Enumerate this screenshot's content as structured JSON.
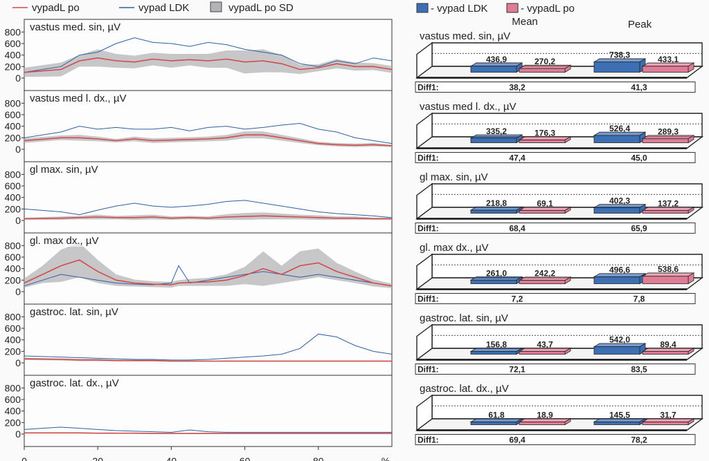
{
  "legend_left": [
    {
      "label": "vypadL po",
      "color": "#d24a4a"
    },
    {
      "label": "vypad LDK",
      "color": "#2f5f9e"
    },
    {
      "label": "vypadL po SD",
      "color": "#b4b4b8"
    }
  ],
  "legend_right": [
    {
      "label": "vypad LDK",
      "color": "#3d6fb5"
    },
    {
      "label": "vypadL po",
      "color": "#e07d96"
    }
  ],
  "bar_headers": {
    "mean": "Mean",
    "peak": "Peak"
  },
  "diff_label": "Diff1:",
  "colors": {
    "ldk": "#2f5f9e",
    "po": "#d24a4a",
    "sd": "#b4b4b8",
    "bar_ldk": "#3d6fb5",
    "bar_po": "#e07d96"
  },
  "chart_data": [
    {
      "type": "line",
      "title": "vastus med. sin, µV",
      "x_ticks": [
        "0",
        "20",
        "40",
        "60",
        "80",
        "%"
      ],
      "y_ticks": [
        "0",
        "200",
        "400",
        "600",
        "800"
      ],
      "ylim": [
        0,
        900
      ],
      "xlim": [
        0,
        100
      ],
      "x": [
        0,
        10,
        15,
        20,
        25,
        30,
        35,
        40,
        45,
        50,
        55,
        60,
        65,
        70,
        75,
        80,
        85,
        90,
        95,
        100
      ],
      "series": [
        {
          "name": "vypad LDK",
          "values": [
            100,
            200,
            400,
            450,
            600,
            700,
            620,
            600,
            550,
            620,
            580,
            500,
            450,
            400,
            250,
            200,
            300,
            250,
            350,
            300
          ]
        },
        {
          "name": "vypadL po",
          "values": [
            100,
            150,
            300,
            350,
            300,
            280,
            330,
            300,
            320,
            300,
            330,
            280,
            300,
            250,
            150,
            180,
            250,
            200,
            200,
            150
          ]
        },
        {
          "name": "vypadL po SD",
          "values": [
            80,
            120,
            100,
            150,
            120,
            110,
            110,
            120,
            100,
            120,
            150,
            200,
            200,
            150,
            80,
            60,
            80,
            70,
            60,
            60
          ]
        }
      ]
    },
    {
      "type": "line",
      "title": "vastus med l. dx., µV",
      "x_ticks": [
        "0",
        "20",
        "40",
        "60",
        "80",
        "%"
      ],
      "y_ticks": [
        "0",
        "200",
        "400",
        "600",
        "800"
      ],
      "ylim": [
        0,
        900
      ],
      "xlim": [
        0,
        100
      ],
      "x": [
        0,
        10,
        15,
        20,
        25,
        30,
        35,
        40,
        45,
        50,
        55,
        60,
        65,
        70,
        75,
        80,
        85,
        90,
        95,
        100
      ],
      "series": [
        {
          "name": "vypad LDK",
          "values": [
            200,
            300,
            400,
            350,
            380,
            350,
            350,
            380,
            320,
            380,
            400,
            350,
            380,
            420,
            450,
            350,
            300,
            200,
            150,
            100
          ]
        },
        {
          "name": "vypadL po",
          "values": [
            150,
            200,
            200,
            180,
            150,
            180,
            150,
            160,
            170,
            180,
            200,
            250,
            250,
            200,
            150,
            100,
            80,
            70,
            80,
            60
          ]
        },
        {
          "name": "vypadL po SD",
          "values": [
            40,
            40,
            50,
            40,
            30,
            40,
            40,
            40,
            40,
            40,
            50,
            60,
            60,
            50,
            40,
            30,
            30,
            30,
            30,
            20
          ]
        }
      ]
    },
    {
      "type": "line",
      "title": "gl max. sin, µV",
      "x_ticks": [
        "0",
        "20",
        "40",
        "60",
        "80",
        "%"
      ],
      "y_ticks": [
        "0",
        "200",
        "400",
        "600",
        "800"
      ],
      "ylim": [
        0,
        900
      ],
      "xlim": [
        0,
        100
      ],
      "x": [
        0,
        10,
        15,
        20,
        25,
        30,
        35,
        40,
        45,
        50,
        55,
        60,
        65,
        70,
        75,
        80,
        85,
        90,
        95,
        100
      ],
      "series": [
        {
          "name": "vypad LDK",
          "values": [
            200,
            150,
            100,
            180,
            250,
            300,
            250,
            230,
            250,
            280,
            330,
            350,
            300,
            250,
            200,
            150,
            120,
            100,
            80,
            50
          ]
        },
        {
          "name": "vypadL po",
          "values": [
            30,
            40,
            50,
            60,
            50,
            50,
            60,
            40,
            50,
            40,
            60,
            70,
            80,
            70,
            60,
            50,
            40,
            40,
            30,
            30
          ]
        },
        {
          "name": "vypadL po SD",
          "values": [
            20,
            30,
            30,
            40,
            30,
            40,
            40,
            30,
            30,
            30,
            50,
            60,
            60,
            50,
            40,
            40,
            30,
            30,
            20,
            20
          ]
        }
      ]
    },
    {
      "type": "line",
      "title": "gl. max dx., µV",
      "x_ticks": [
        "0",
        "20",
        "40",
        "60",
        "80",
        "%"
      ],
      "y_ticks": [
        "0",
        "200",
        "400",
        "600",
        "800"
      ],
      "ylim": [
        0,
        900
      ],
      "xlim": [
        0,
        100
      ],
      "x": [
        0,
        5,
        10,
        15,
        20,
        25,
        30,
        35,
        40,
        42,
        45,
        50,
        55,
        60,
        65,
        70,
        75,
        80,
        85,
        90,
        95,
        100
      ],
      "series": [
        {
          "name": "vypad LDK",
          "values": [
            100,
            200,
            300,
            250,
            200,
            150,
            130,
            120,
            150,
            450,
            150,
            200,
            250,
            300,
            350,
            300,
            250,
            300,
            250,
            200,
            150,
            100
          ]
        },
        {
          "name": "vypadL po",
          "values": [
            150,
            300,
            450,
            550,
            350,
            200,
            150,
            130,
            120,
            150,
            160,
            170,
            200,
            280,
            400,
            300,
            450,
            500,
            350,
            250,
            150,
            100
          ]
        },
        {
          "name": "vypadL po SD",
          "values": [
            80,
            150,
            280,
            300,
            200,
            100,
            60,
            50,
            50,
            50,
            60,
            70,
            100,
            150,
            300,
            150,
            250,
            250,
            150,
            100,
            60,
            40
          ]
        }
      ]
    },
    {
      "type": "line",
      "title": "gastroc. lat. sin, µV",
      "x_ticks": [
        "0",
        "20",
        "40",
        "60",
        "80",
        "%"
      ],
      "y_ticks": [
        "0",
        "200",
        "400",
        "600",
        "800"
      ],
      "ylim": [
        0,
        900
      ],
      "xlim": [
        0,
        100
      ],
      "x": [
        0,
        10,
        15,
        20,
        25,
        30,
        35,
        40,
        45,
        50,
        55,
        60,
        65,
        70,
        75,
        80,
        85,
        90,
        95,
        100
      ],
      "series": [
        {
          "name": "vypad LDK",
          "values": [
            120,
            100,
            90,
            80,
            70,
            60,
            60,
            50,
            50,
            60,
            80,
            100,
            120,
            150,
            250,
            500,
            450,
            300,
            200,
            150
          ]
        },
        {
          "name": "vypadL po",
          "values": [
            70,
            60,
            50,
            50,
            40,
            40,
            40,
            30,
            30,
            30,
            30,
            30,
            30,
            30,
            30,
            30,
            30,
            30,
            30,
            30
          ]
        },
        {
          "name": "vypadL po SD",
          "values": [
            20,
            20,
            20,
            20,
            15,
            15,
            15,
            10,
            10,
            10,
            10,
            10,
            10,
            10,
            10,
            10,
            10,
            10,
            10,
            10
          ]
        }
      ]
    },
    {
      "type": "line",
      "title": "gastroc. lat. dx., µV",
      "x_ticks": [
        "0",
        "20",
        "40",
        "60",
        "80",
        "%"
      ],
      "y_ticks": [
        "0",
        "200",
        "400",
        "600",
        "800"
      ],
      "ylim": [
        0,
        900
      ],
      "xlim": [
        0,
        100
      ],
      "x": [
        0,
        5,
        10,
        15,
        20,
        25,
        30,
        35,
        40,
        45,
        50,
        55,
        60,
        65,
        70,
        75,
        80,
        85,
        90,
        95,
        100
      ],
      "series": [
        {
          "name": "vypad LDK",
          "values": [
            80,
            100,
            120,
            100,
            80,
            60,
            50,
            40,
            30,
            70,
            40,
            30,
            30,
            30,
            30,
            30,
            30,
            30,
            30,
            30,
            30
          ]
        },
        {
          "name": "vypadL po",
          "values": [
            20,
            20,
            20,
            20,
            15,
            15,
            15,
            10,
            10,
            10,
            10,
            10,
            10,
            10,
            10,
            10,
            10,
            10,
            10,
            10,
            10
          ]
        },
        {
          "name": "vypadL po SD",
          "values": [
            10,
            10,
            10,
            10,
            10,
            10,
            10,
            10,
            10,
            10,
            10,
            10,
            10,
            10,
            10,
            10,
            10,
            10,
            10,
            10,
            10
          ]
        }
      ]
    },
    {
      "type": "bar",
      "title": "vastus med. sin, µV",
      "categories": [
        "Mean",
        "Peak"
      ],
      "series": [
        {
          "name": "vypad LDK",
          "values": [
            436.9,
            738.3
          ]
        },
        {
          "name": "vypadL po",
          "values": [
            270.2,
            433.1
          ]
        }
      ],
      "labels": {
        "mean_ldk": "436,9",
        "mean_po": "270,2",
        "peak_ldk": "738,3",
        "peak_po": "433,1"
      },
      "diff1": [
        "38,2",
        "41,3"
      ]
    },
    {
      "type": "bar",
      "title": "vastus med l. dx., µV",
      "categories": [
        "Mean",
        "Peak"
      ],
      "series": [
        {
          "name": "vypad LDK",
          "values": [
            335.2,
            526.4
          ]
        },
        {
          "name": "vypadL po",
          "values": [
            176.3,
            289.3
          ]
        }
      ],
      "labels": {
        "mean_ldk": "335,2",
        "mean_po": "176,3",
        "peak_ldk": "526,4",
        "peak_po": "289,3"
      },
      "diff1": [
        "47,4",
        "45,0"
      ]
    },
    {
      "type": "bar",
      "title": "gl max. sin, µV",
      "categories": [
        "Mean",
        "Peak"
      ],
      "series": [
        {
          "name": "vypad LDK",
          "values": [
            218.8,
            402.3
          ]
        },
        {
          "name": "vypadL po",
          "values": [
            69.1,
            137.2
          ]
        }
      ],
      "labels": {
        "mean_ldk": "218,8",
        "mean_po": "69,1",
        "peak_ldk": "402,3",
        "peak_po": "137,2"
      },
      "diff1": [
        "68,4",
        "65,9"
      ]
    },
    {
      "type": "bar",
      "title": "gl. max dx., µV",
      "categories": [
        "Mean",
        "Peak"
      ],
      "series": [
        {
          "name": "vypad LDK",
          "values": [
            261.0,
            496.6
          ]
        },
        {
          "name": "vypadL po",
          "values": [
            242.2,
            538.6
          ]
        }
      ],
      "labels": {
        "mean_ldk": "261,0",
        "mean_po": "242,2",
        "peak_ldk": "496,6",
        "peak_po": "538,6"
      },
      "diff1": [
        "7,2",
        "7,8"
      ]
    },
    {
      "type": "bar",
      "title": "gastroc. lat. sin, µV",
      "categories": [
        "Mean",
        "Peak"
      ],
      "series": [
        {
          "name": "vypad LDK",
          "values": [
            156.8,
            542.0
          ]
        },
        {
          "name": "vypadL po",
          "values": [
            43.7,
            89.4
          ]
        }
      ],
      "labels": {
        "mean_ldk": "156,8",
        "mean_po": "43,7",
        "peak_ldk": "542,0",
        "peak_po": "89,4"
      },
      "diff1": [
        "72,1",
        "83,5"
      ]
    },
    {
      "type": "bar",
      "title": "gastroc. lat. dx., µV",
      "categories": [
        "Mean",
        "Peak"
      ],
      "series": [
        {
          "name": "vypad LDK",
          "values": [
            61.8,
            145.5
          ]
        },
        {
          "name": "vypadL po",
          "values": [
            18.9,
            31.7
          ]
        }
      ],
      "labels": {
        "mean_ldk": "61,8",
        "mean_po": "18,9",
        "peak_ldk": "145,5",
        "peak_po": "31,7"
      },
      "diff1": [
        "69,4",
        "78,2"
      ]
    }
  ]
}
